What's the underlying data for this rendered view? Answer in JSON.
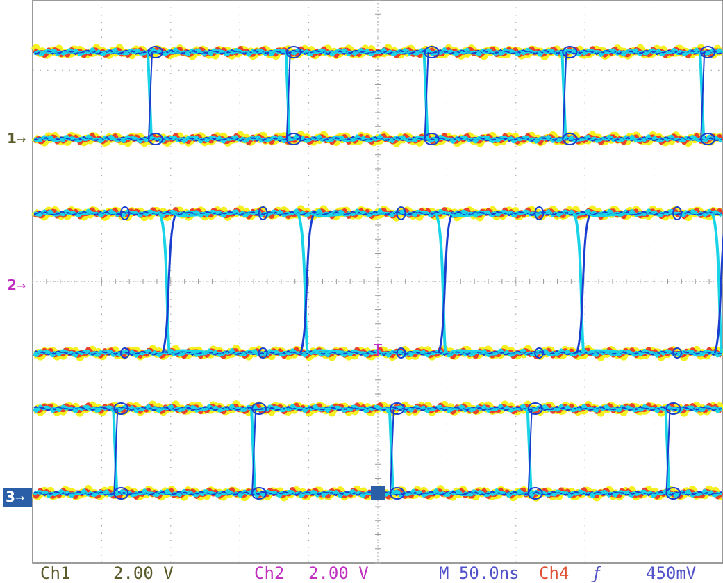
{
  "colors": {
    "background": "#ffffff",
    "grid": "#9a9a9a",
    "trace_core": "#1a3ed0",
    "trace_cyan": "#19d3e6",
    "trace_red": "#e8402a",
    "trace_yellow": "#f5f020",
    "ch1": "#5a5a2a",
    "ch2": "#c02fc0",
    "timebase": "#5050c8",
    "trigger": "#e05030",
    "ch3_marker_bg": "#2a5fa8"
  },
  "markers": [
    {
      "id": "1",
      "arrow": "→"
    },
    {
      "id": "2",
      "arrow": "→"
    },
    {
      "id": "3",
      "arrow": "→"
    }
  ],
  "statusbar": {
    "ch1_label": "Ch1",
    "ch1_scale": "2.00 V",
    "ch2_label": "Ch2",
    "ch2_scale": "2.00 V",
    "timebase": "M 50.0ns",
    "trigger_source": "Ch4",
    "trigger_slope": "ƒ",
    "trigger_level": "450mV"
  },
  "traces": [
    {
      "name": "ch1",
      "period_divs": 2.0,
      "phase_divs": 1.7
    },
    {
      "name": "ch2",
      "period_divs": 2.0,
      "phase_divs": 1.9
    },
    {
      "name": "ch3",
      "period_divs": 2.0,
      "phase_divs": 1.2
    }
  ]
}
